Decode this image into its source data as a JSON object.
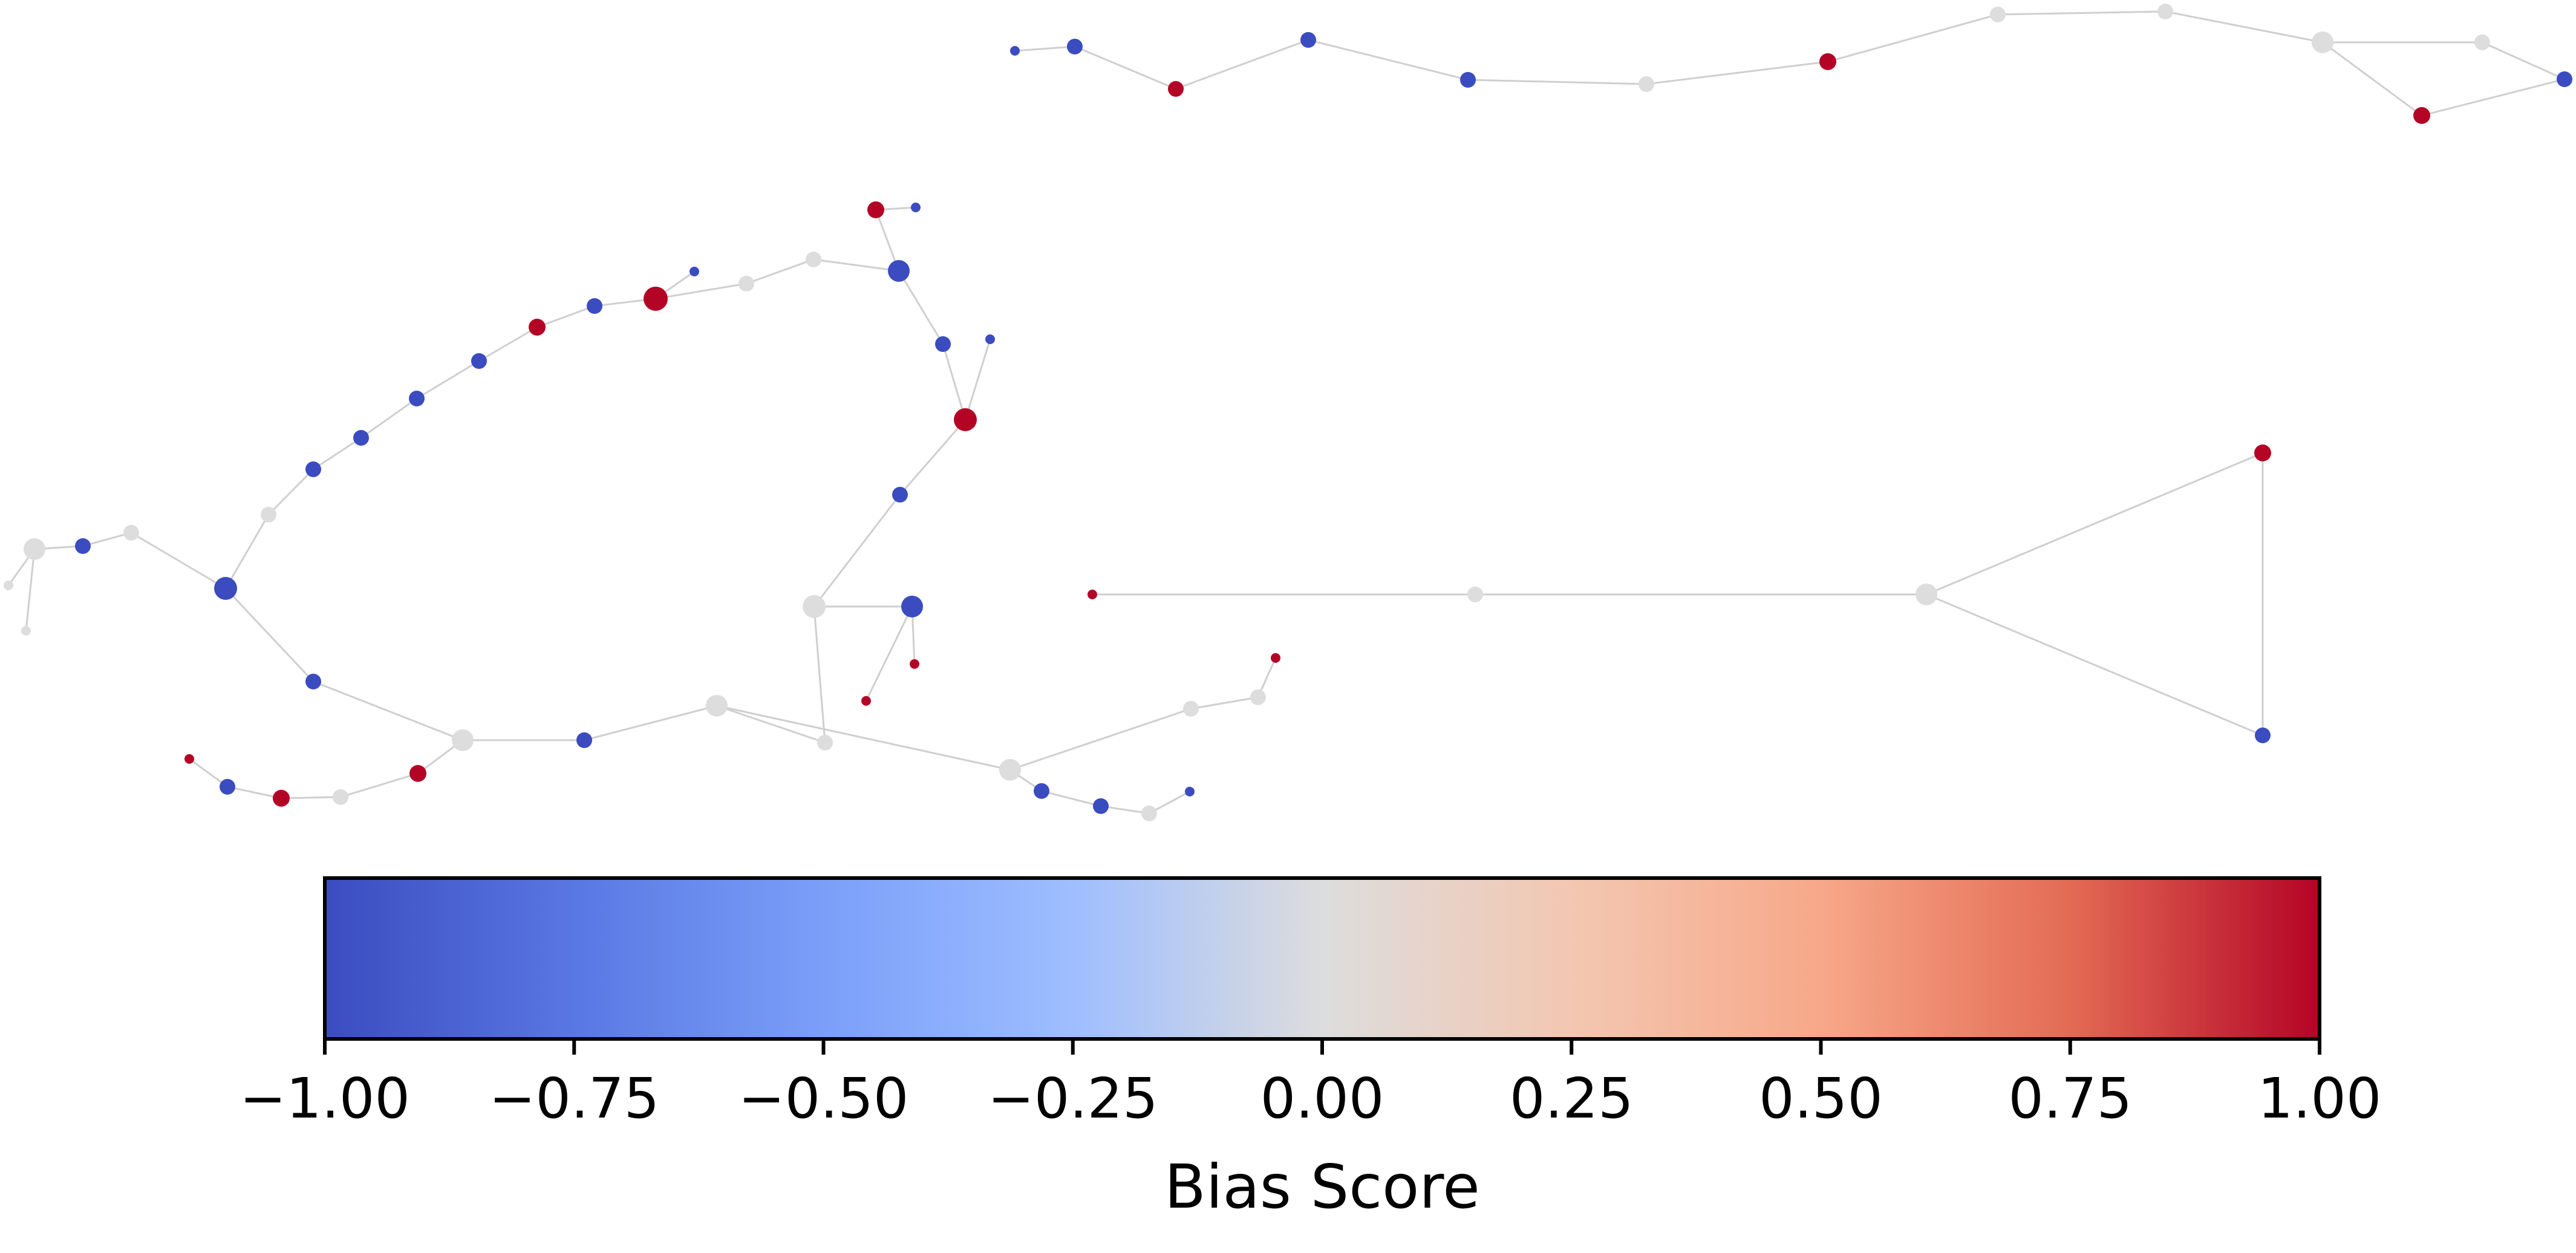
{
  "colors": {
    "low": "#3b4cc0",
    "mid": "#dddddd",
    "high": "#b40426",
    "edge": "#cfcfcf",
    "colormap": "coolwarm"
  },
  "colorbar": {
    "title": "Bias Score",
    "ticks": [
      "−1.00",
      "−0.75",
      "−0.50",
      "−0.25",
      "0.00",
      "0.25",
      "0.50",
      "0.75",
      "1.00"
    ],
    "range": [
      -1.0,
      1.0
    ]
  }
}
